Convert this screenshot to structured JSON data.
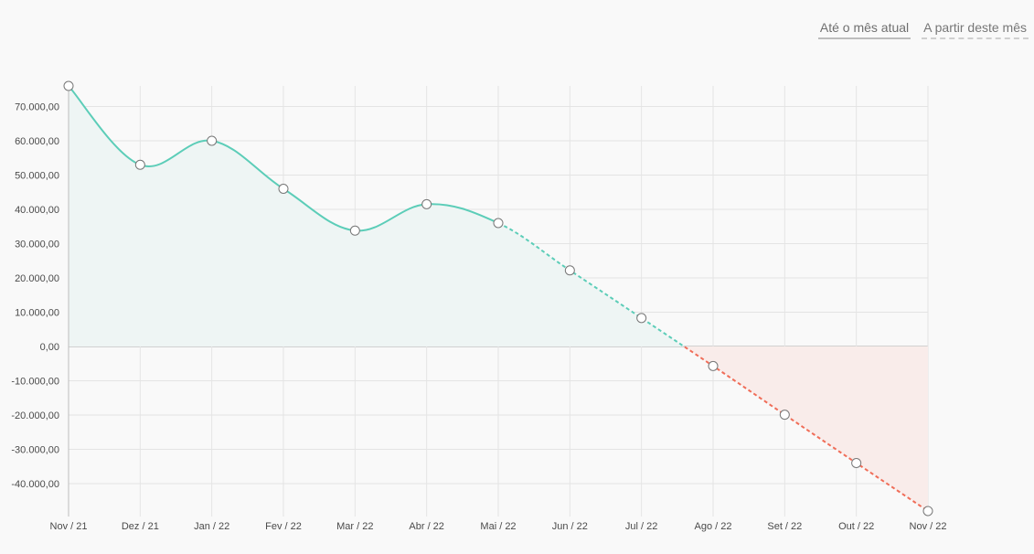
{
  "toggles": {
    "until_current": "Até o mês atual",
    "from_this_month": "A partir deste mês"
  },
  "colors": {
    "positive_line": "#5ccdb8",
    "positive_fill": "#eef5f4",
    "negative_line": "#f06d58",
    "negative_fill": "#f9ecea",
    "grid": "#e4e4e4",
    "zero_line": "#c4c4c4"
  },
  "chart_data": {
    "type": "line",
    "title": "",
    "xlabel": "",
    "ylabel": "",
    "categories": [
      "Nov / 21",
      "Dez / 21",
      "Jan / 22",
      "Fev / 22",
      "Mar / 22",
      "Abr / 22",
      "Mai / 22",
      "Jun / 22",
      "Jul / 22",
      "Ago / 22",
      "Set / 22",
      "Out / 22",
      "Nov / 22"
    ],
    "values": [
      76000,
      53000,
      60000,
      46000,
      33800,
      41500,
      36000,
      22200,
      8300,
      -5700,
      -19900,
      -34000,
      -48000
    ],
    "actual_until_index": 6,
    "ylim": [
      -48000,
      76000
    ],
    "yticks": [
      70000,
      60000,
      50000,
      40000,
      30000,
      20000,
      10000,
      0,
      -10000,
      -20000,
      -30000,
      -40000
    ],
    "ytick_labels": [
      "70.000,00",
      "60.000,00",
      "50.000,00",
      "40.000,00",
      "30.000,00",
      "20.000,00",
      "10.000,00",
      "0,00",
      "-10.000,00",
      "-20.000,00",
      "-30.000,00",
      "-40.000,00"
    ],
    "grid": true,
    "legend": "none"
  }
}
